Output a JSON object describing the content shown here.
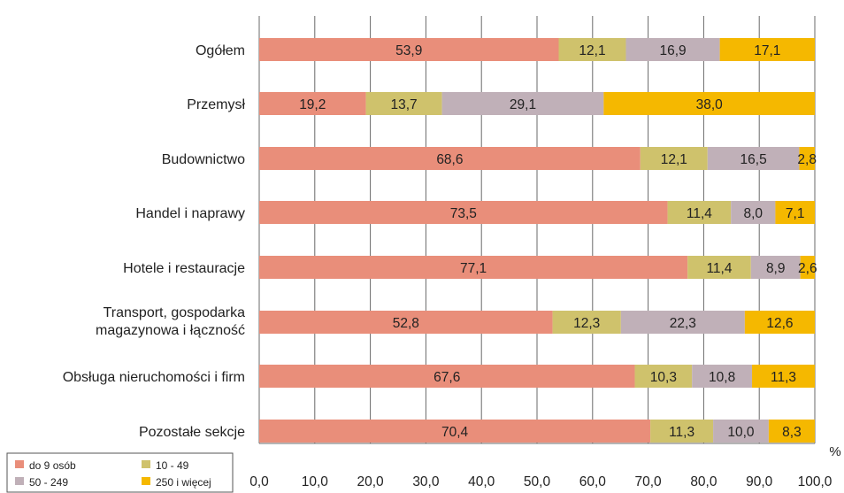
{
  "chart_data": {
    "type": "bar",
    "orientation": "horizontal",
    "stacked": true,
    "categories": [
      [
        "Ogółem"
      ],
      [
        "Przemysł"
      ],
      [
        "Budownictwo"
      ],
      [
        "Handel i naprawy"
      ],
      [
        "Hotele i restauracje"
      ],
      [
        "Transport, gospodarka",
        "magazynowa i łączność"
      ],
      [
        "Obsługa nieruchomości i firm"
      ],
      [
        "Pozostałe sekcje"
      ]
    ],
    "series": [
      {
        "name": "do 9 osób",
        "color": "#e98e7a",
        "values": [
          "53,9",
          "19,2",
          "68,6",
          "73,5",
          "77,1",
          "52,8",
          "67,6",
          "70,4"
        ]
      },
      {
        "name": "10 - 49",
        "color": "#cfc26c",
        "values": [
          "12,1",
          "13,7",
          "12,1",
          "11,4",
          "11,4",
          "12,3",
          "10,3",
          "11,3"
        ]
      },
      {
        "name": "50 - 249",
        "color": "#c0b0b8",
        "values": [
          "16,9",
          "29,1",
          "16,5",
          "8,0",
          "8,9",
          "22,3",
          "10,8",
          "10,0"
        ]
      },
      {
        "name": "250 i więcej",
        "color": "#f5b800",
        "values": [
          "17,1",
          "38,0",
          "2,8",
          "7,1",
          "2,6",
          "12,6",
          "11,3",
          "8,3"
        ]
      }
    ],
    "xlim": [
      0,
      100
    ],
    "xticks": [
      "0,0",
      "10,0",
      "20,0",
      "30,0",
      "40,0",
      "50,0",
      "60,0",
      "70,0",
      "80,0",
      "90,0",
      "100,0"
    ],
    "xunit": "%",
    "grid": true,
    "legend_position": "bottom-left"
  }
}
